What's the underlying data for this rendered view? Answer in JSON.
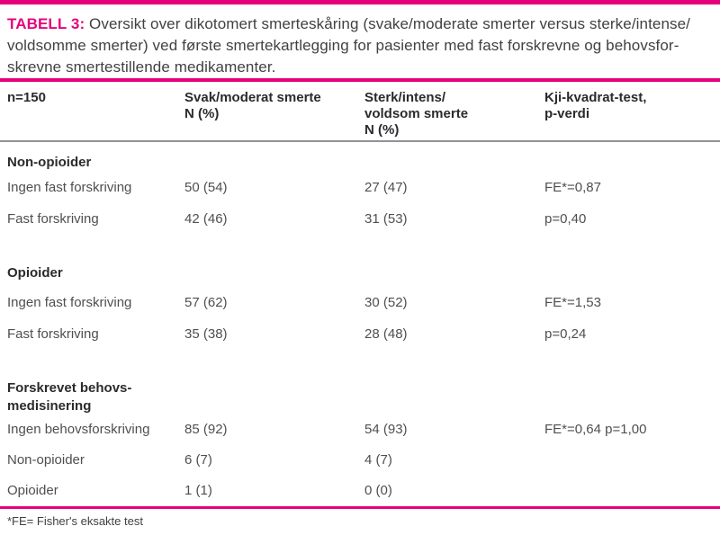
{
  "accent_color": "#e6007e",
  "caption": {
    "label": "TABELL 3:",
    "text": "Oversikt over dikotomert smerteskåring (svake/moderate smerter versus sterke/intense/\nvoldsomme smerter) ved første smertekartlegging for pasienter med fast forskrevne og behovsfor-\nskrevne smertestillende medikamenter."
  },
  "table": {
    "headers": {
      "col0": "n=150",
      "col1": "Svak/moderat smerte\nN (%)",
      "col2": "Sterk/intens/\nvoldsom smerte\nN (%)",
      "col3": "Kji-kvadrat-test,\np-verdi"
    },
    "sections": [
      {
        "title": "Non-opioider",
        "rows": [
          {
            "label": "Ingen fast forskriving",
            "v1": "50 (54)",
            "v2": "27 (47)",
            "v3": "FE*=0,87"
          },
          {
            "label": "Fast forskriving",
            "v1": "42 (46)",
            "v2": "31 (53)",
            "v3": "p=0,40"
          }
        ]
      },
      {
        "title": "Opioider",
        "rows": [
          {
            "label": "Ingen fast forskriving",
            "v1": "57 (62)",
            "v2": "30 (52)",
            "v3": "FE*=1,53"
          },
          {
            "label": "Fast forskriving",
            "v1": "35 (38)",
            "v2": "28 (48)",
            "v3": "p=0,24"
          }
        ]
      },
      {
        "title": "Forskrevet behovs-\nmedisinering",
        "rows": [
          {
            "label": "Ingen behovsforskriving",
            "v1": "85 (92)",
            "v2": "54 (93)",
            "v3": "FE*=0,64 p=1,00"
          },
          {
            "label": "Non-opioider",
            "v1": "6 (7)",
            "v2": "4 (7)",
            "v3": ""
          },
          {
            "label": "Opioider",
            "v1": "1 (1)",
            "v2": "0 (0)",
            "v3": ""
          }
        ]
      }
    ],
    "footnote": "*FE= Fisher's eksakte test"
  }
}
